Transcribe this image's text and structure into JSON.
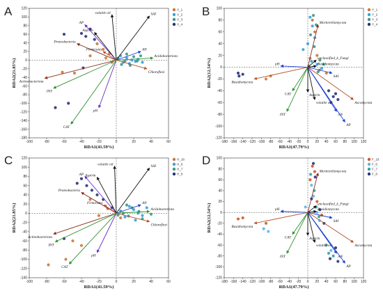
{
  "colors": {
    "black": "#111111",
    "brown": "#b5502a",
    "blue": "#1f3fcf",
    "green": "#2f8f2f",
    "purple": "#6a2fc0",
    "dark_red": "#8b2a1a"
  },
  "chart_data": [
    {
      "panel": "A",
      "type": "scatter",
      "title": "",
      "xlabel": "RDA1(41.59%)",
      "ylabel": "RDA2(21.85%)",
      "xlim": [
        -100,
        60
      ],
      "ylim": [
        -180,
        120
      ],
      "xticks": [
        -100,
        -80,
        -60,
        -40,
        -20,
        0,
        20,
        40,
        60
      ],
      "yticks": [
        -180,
        -160,
        -140,
        -120,
        -100,
        -80,
        -60,
        -40,
        -20,
        0,
        20,
        40,
        60,
        80,
        100,
        120
      ],
      "legend_position": "top-right",
      "series": [
        {
          "name": "V_1",
          "color": "#c8793a",
          "points": [
            [
              -22,
              38
            ],
            [
              -15,
              25
            ],
            [
              -8,
              15
            ],
            [
              -30,
              10
            ],
            [
              -12,
              5
            ],
            [
              -5,
              -5
            ],
            [
              -62,
              -28
            ],
            [
              -48,
              -30
            ]
          ]
        },
        {
          "name": "V_2",
          "color": "#3aa0d8",
          "points": [
            [
              5,
              10
            ],
            [
              12,
              5
            ],
            [
              18,
              0
            ],
            [
              22,
              -3
            ],
            [
              8,
              -5
            ],
            [
              15,
              -8
            ],
            [
              25,
              2
            ],
            [
              30,
              -5
            ]
          ]
        },
        {
          "name": "V_3",
          "color": "#3a9a8a",
          "points": [
            [
              2,
              5
            ],
            [
              10,
              -2
            ],
            [
              16,
              -12
            ],
            [
              20,
              8
            ],
            [
              6,
              -10
            ],
            [
              24,
              -2
            ],
            [
              28,
              10
            ],
            [
              12,
              14
            ]
          ]
        },
        {
          "name": "V_4",
          "color": "#27327a",
          "points": [
            [
              -40,
              62
            ],
            [
              -35,
              55
            ],
            [
              -30,
              72
            ],
            [
              -25,
              48
            ],
            [
              -60,
              60
            ],
            [
              -70,
              -110
            ],
            [
              -55,
              -100
            ],
            [
              -38,
              -18
            ]
          ]
        }
      ],
      "arrows": [
        {
          "label": "volatile oil",
          "x": -5,
          "y": 105,
          "color": "#111111"
        },
        {
          "label": "SAI",
          "x": 38,
          "y": 102,
          "color": "#111111"
        },
        {
          "label": "Aspirin",
          "x": -25,
          "y": 64,
          "color": "#111111"
        },
        {
          "label": "AP",
          "x": -36,
          "y": 82,
          "color": "#6a2fc0"
        },
        {
          "label": "Proteobacteria",
          "x": -45,
          "y": 38,
          "color": "#8b2a1a"
        },
        {
          "label": "Firmicutes",
          "x": -15,
          "y": 20,
          "color": "#b5502a"
        },
        {
          "label": "AN",
          "x": 28,
          "y": 20,
          "color": "#1f3fcf"
        },
        {
          "label": "Acidobacteriota",
          "x": 42,
          "y": 5,
          "color": "#2f8f2f"
        },
        {
          "label": "Chloroflexi",
          "x": 35,
          "y": -20,
          "color": "#b5502a"
        },
        {
          "label": "Actinobacteriota",
          "x": -82,
          "y": -42,
          "color": "#8b2a1a"
        },
        {
          "label": "INT",
          "x": -72,
          "y": -65,
          "color": "#2f8f2f"
        },
        {
          "label": "pH",
          "x": -20,
          "y": -110,
          "color": "#6a2fc0"
        },
        {
          "label": "CAT",
          "x": -52,
          "y": -148,
          "color": "#2f8f2f"
        }
      ]
    },
    {
      "panel": "B",
      "type": "scatter",
      "title": "",
      "xlabel": "RDA1(47.79%)",
      "ylabel": "RDA2(12.54%)",
      "xlim": [
        -180,
        120
      ],
      "ylim": [
        -120,
        100
      ],
      "xticks": [
        -180,
        -160,
        -140,
        -120,
        -100,
        -80,
        -60,
        -40,
        -20,
        0,
        20,
        40,
        60,
        80,
        100,
        120
      ],
      "yticks": [
        -120,
        -100,
        -80,
        -60,
        -40,
        -20,
        0,
        20,
        40,
        60,
        80,
        100
      ],
      "legend_position": "top-right",
      "series": [
        {
          "name": "Y_1",
          "color": "#c8793a",
          "points": [
            [
              -90,
              -20
            ],
            [
              -80,
              -15
            ],
            [
              10,
              80
            ],
            [
              15,
              60
            ],
            [
              20,
              20
            ],
            [
              5,
              15
            ],
            [
              25,
              -5
            ],
            [
              40,
              -10
            ]
          ]
        },
        {
          "name": "Y_2",
          "color": "#3aa0d8",
          "points": [
            [
              5,
              85
            ],
            [
              10,
              70
            ],
            [
              15,
              50
            ],
            [
              0,
              40
            ],
            [
              20,
              5
            ],
            [
              30,
              -2
            ],
            [
              -10,
              30
            ],
            [
              8,
              10
            ]
          ]
        },
        {
          "name": "Y_3",
          "color": "#3a9a8a",
          "points": [
            [
              12,
              88
            ],
            [
              18,
              72
            ],
            [
              6,
              55
            ],
            [
              14,
              35
            ],
            [
              26,
              12
            ],
            [
              22,
              -8
            ],
            [
              2,
              2
            ],
            [
              34,
              5
            ]
          ]
        },
        {
          "name": "Y_4",
          "color": "#27327a",
          "points": [
            [
              -150,
              -10
            ],
            [
              -148,
              -15
            ],
            [
              -140,
              -12
            ],
            [
              45,
              -40
            ],
            [
              55,
              -50
            ],
            [
              60,
              -45
            ],
            [
              65,
              -55
            ],
            [
              50,
              -60
            ]
          ]
        }
      ],
      "arrows": [
        {
          "label": "Mortierellomycota",
          "x": 22,
          "y": 72,
          "color": "#8b2a1a"
        },
        {
          "label": "unclassified_k_Fungi",
          "x": 18,
          "y": 12,
          "color": "#111111"
        },
        {
          "label": "Basidiomycota",
          "x": 18,
          "y": 2,
          "color": "#111111"
        },
        {
          "label": "SAI",
          "x": 52,
          "y": -10,
          "color": "#1f3fcf"
        },
        {
          "label": "pH",
          "x": -58,
          "y": 2,
          "color": "#1f3fcf"
        },
        {
          "label": "Basidiomycota",
          "x": -115,
          "y": -20,
          "color": "#b5502a"
        },
        {
          "label": "CAT",
          "x": -33,
          "y": -40,
          "color": "#2f8f2f"
        },
        {
          "label": "INT",
          "x": -45,
          "y": -75,
          "color": "#2f8f2f"
        },
        {
          "label": "Aspirin",
          "x": 0,
          "y": -42,
          "color": "#111111"
        },
        {
          "label": "volatile oil",
          "x": 15,
          "y": -55,
          "color": "#111111"
        },
        {
          "label": "AN",
          "x": 62,
          "y": -75,
          "color": "#1f3fcf"
        },
        {
          "label": "AP",
          "x": 80,
          "y": -93,
          "color": "#1f3fcf"
        },
        {
          "label": "Ascomycota",
          "x": 98,
          "y": -55,
          "color": "#b5502a"
        }
      ]
    },
    {
      "panel": "C",
      "type": "scatter",
      "title": "",
      "xlabel": "RDA1(41.59%)",
      "ylabel": "RDA2(21.85%)",
      "xlim": [
        -100,
        60
      ],
      "ylim": [
        -140,
        120
      ],
      "xticks": [
        -100,
        -80,
        -60,
        -40,
        -20,
        0,
        20,
        40,
        60
      ],
      "yticks": [
        -140,
        -120,
        -100,
        -80,
        -60,
        -40,
        -20,
        0,
        20,
        40,
        60,
        80,
        100,
        120
      ],
      "legend_position": "top-right",
      "series": [
        {
          "name": "H_16",
          "color": "#c8793a",
          "points": [
            [
              -58,
              -100
            ],
            [
              -78,
              -112
            ],
            [
              -30,
              30
            ],
            [
              -10,
              10
            ],
            [
              -50,
              -60
            ],
            [
              -20,
              -5
            ],
            [
              -40,
              -70
            ],
            [
              5,
              -10
            ]
          ]
        },
        {
          "name": "H_6",
          "color": "#3aa0d8",
          "points": [
            [
              15,
              15
            ],
            [
              20,
              8
            ],
            [
              25,
              0
            ],
            [
              30,
              -5
            ],
            [
              10,
              -8
            ],
            [
              35,
              12
            ],
            [
              22,
              -15
            ],
            [
              5,
              5
            ]
          ]
        },
        {
          "name": "H_7",
          "color": "#3a9a8a",
          "points": [
            [
              8,
              0
            ],
            [
              14,
              -6
            ],
            [
              18,
              12
            ],
            [
              26,
              4
            ],
            [
              30,
              -12
            ],
            [
              12,
              18
            ],
            [
              2,
              -4
            ],
            [
              40,
              -2
            ]
          ]
        },
        {
          "name": "H_8",
          "color": "#27327a",
          "points": [
            [
              -40,
              75
            ],
            [
              -34,
              60
            ],
            [
              -28,
              50
            ],
            [
              -45,
              65
            ],
            [
              -22,
              40
            ],
            [
              -15,
              30
            ],
            [
              -5,
              12
            ],
            [
              -60,
              -55
            ]
          ]
        }
      ],
      "arrows": [
        {
          "label": "volatile oil",
          "x": -2,
          "y": 102,
          "color": "#111111"
        },
        {
          "label": "SAI",
          "x": 38,
          "y": 98,
          "color": "#111111"
        },
        {
          "label": "Aspirin",
          "x": -22,
          "y": 78,
          "color": "#111111"
        },
        {
          "label": "AP",
          "x": -36,
          "y": 80,
          "color": "#6a2fc0"
        },
        {
          "label": "Proteobacteria",
          "x": -40,
          "y": 45,
          "color": "#8b2a1a"
        },
        {
          "label": "Firmicutes",
          "x": -14,
          "y": 18,
          "color": "#b5502a"
        },
        {
          "label": "AN",
          "x": 28,
          "y": 18,
          "color": "#1f3fcf"
        },
        {
          "label": "Acidobacteriota",
          "x": 38,
          "y": 4,
          "color": "#2f8f2f"
        },
        {
          "label": "Chloroflexi",
          "x": 38,
          "y": -18,
          "color": "#b5502a"
        },
        {
          "label": "Actinobacteriota",
          "x": -72,
          "y": -45,
          "color": "#8b2a1a"
        },
        {
          "label": "INT",
          "x": -70,
          "y": -62,
          "color": "#2f8f2f"
        },
        {
          "label": "pH",
          "x": -22,
          "y": -85,
          "color": "#6a2fc0"
        },
        {
          "label": "CAT",
          "x": -54,
          "y": -110,
          "color": "#2f8f2f"
        }
      ]
    },
    {
      "panel": "D",
      "type": "scatter",
      "title": "",
      "xlabel": "RDA1(47.79%)",
      "ylabel": "RDA2(12.54%)",
      "xlim": [
        -180,
        120
      ],
      "ylim": [
        -120,
        100
      ],
      "xticks": [
        -180,
        -160,
        -140,
        -120,
        -100,
        -80,
        -60,
        -40,
        -20,
        0,
        20,
        40,
        60,
        80,
        100,
        120
      ],
      "yticks": [
        -120,
        -100,
        -80,
        -60,
        -40,
        -20,
        0,
        20,
        40,
        60,
        80,
        100
      ],
      "legend_position": "top-right",
      "series": [
        {
          "name": "F_16",
          "color": "#d0572a",
          "points": [
            [
              -150,
              -12
            ],
            [
              -140,
              -10
            ],
            [
              -90,
              -20
            ],
            [
              10,
              85
            ],
            [
              15,
              75
            ],
            [
              5,
              60
            ],
            [
              20,
              20
            ],
            [
              30,
              -5
            ]
          ]
        },
        {
          "name": "F_6",
          "color": "#5ab8e8",
          "points": [
            [
              -95,
              -30
            ],
            [
              -85,
              -35
            ],
            [
              8,
              50
            ],
            [
              12,
              30
            ],
            [
              -5,
              10
            ],
            [
              20,
              0
            ],
            [
              25,
              -15
            ],
            [
              50,
              -70
            ]
          ]
        },
        {
          "name": "F_7",
          "color": "#3aa0a0",
          "points": [
            [
              6,
              70
            ],
            [
              14,
              40
            ],
            [
              18,
              10
            ],
            [
              24,
              -8
            ],
            [
              40,
              -60
            ],
            [
              45,
              -75
            ],
            [
              55,
              -80
            ],
            [
              2,
              0
            ]
          ]
        },
        {
          "name": "F_8",
          "color": "#27327a",
          "points": [
            [
              12,
              90
            ],
            [
              16,
              65
            ],
            [
              8,
              25
            ],
            [
              26,
              5
            ],
            [
              35,
              -20
            ],
            [
              60,
              -65
            ],
            [
              48,
              -85
            ],
            [
              65,
              -90
            ]
          ]
        }
      ],
      "arrows": [
        {
          "label": "Mortierellomycota",
          "x": 22,
          "y": 72,
          "color": "#8b2a1a"
        },
        {
          "label": "unclassified_k_Fungi",
          "x": 18,
          "y": 12,
          "color": "#111111"
        },
        {
          "label": "Basidiomycota",
          "x": 18,
          "y": 2,
          "color": "#111111"
        },
        {
          "label": "SAI",
          "x": 52,
          "y": -10,
          "color": "#1f3fcf"
        },
        {
          "label": "pH",
          "x": -58,
          "y": 2,
          "color": "#1f3fcf"
        },
        {
          "label": "Basidiomycota",
          "x": -115,
          "y": -20,
          "color": "#b5502a"
        },
        {
          "label": "CAT",
          "x": -33,
          "y": -40,
          "color": "#2f8f2f"
        },
        {
          "label": "INT",
          "x": -45,
          "y": -75,
          "color": "#2f8f2f"
        },
        {
          "label": "Aspirin",
          "x": 0,
          "y": -42,
          "color": "#111111"
        },
        {
          "label": "volatile oil",
          "x": 15,
          "y": -55,
          "color": "#111111"
        },
        {
          "label": "AN",
          "x": 62,
          "y": -75,
          "color": "#1f3fcf"
        },
        {
          "label": "AP",
          "x": 80,
          "y": -93,
          "color": "#1f3fcf"
        },
        {
          "label": "Ascomycota",
          "x": 98,
          "y": -55,
          "color": "#b5502a"
        }
      ]
    }
  ]
}
